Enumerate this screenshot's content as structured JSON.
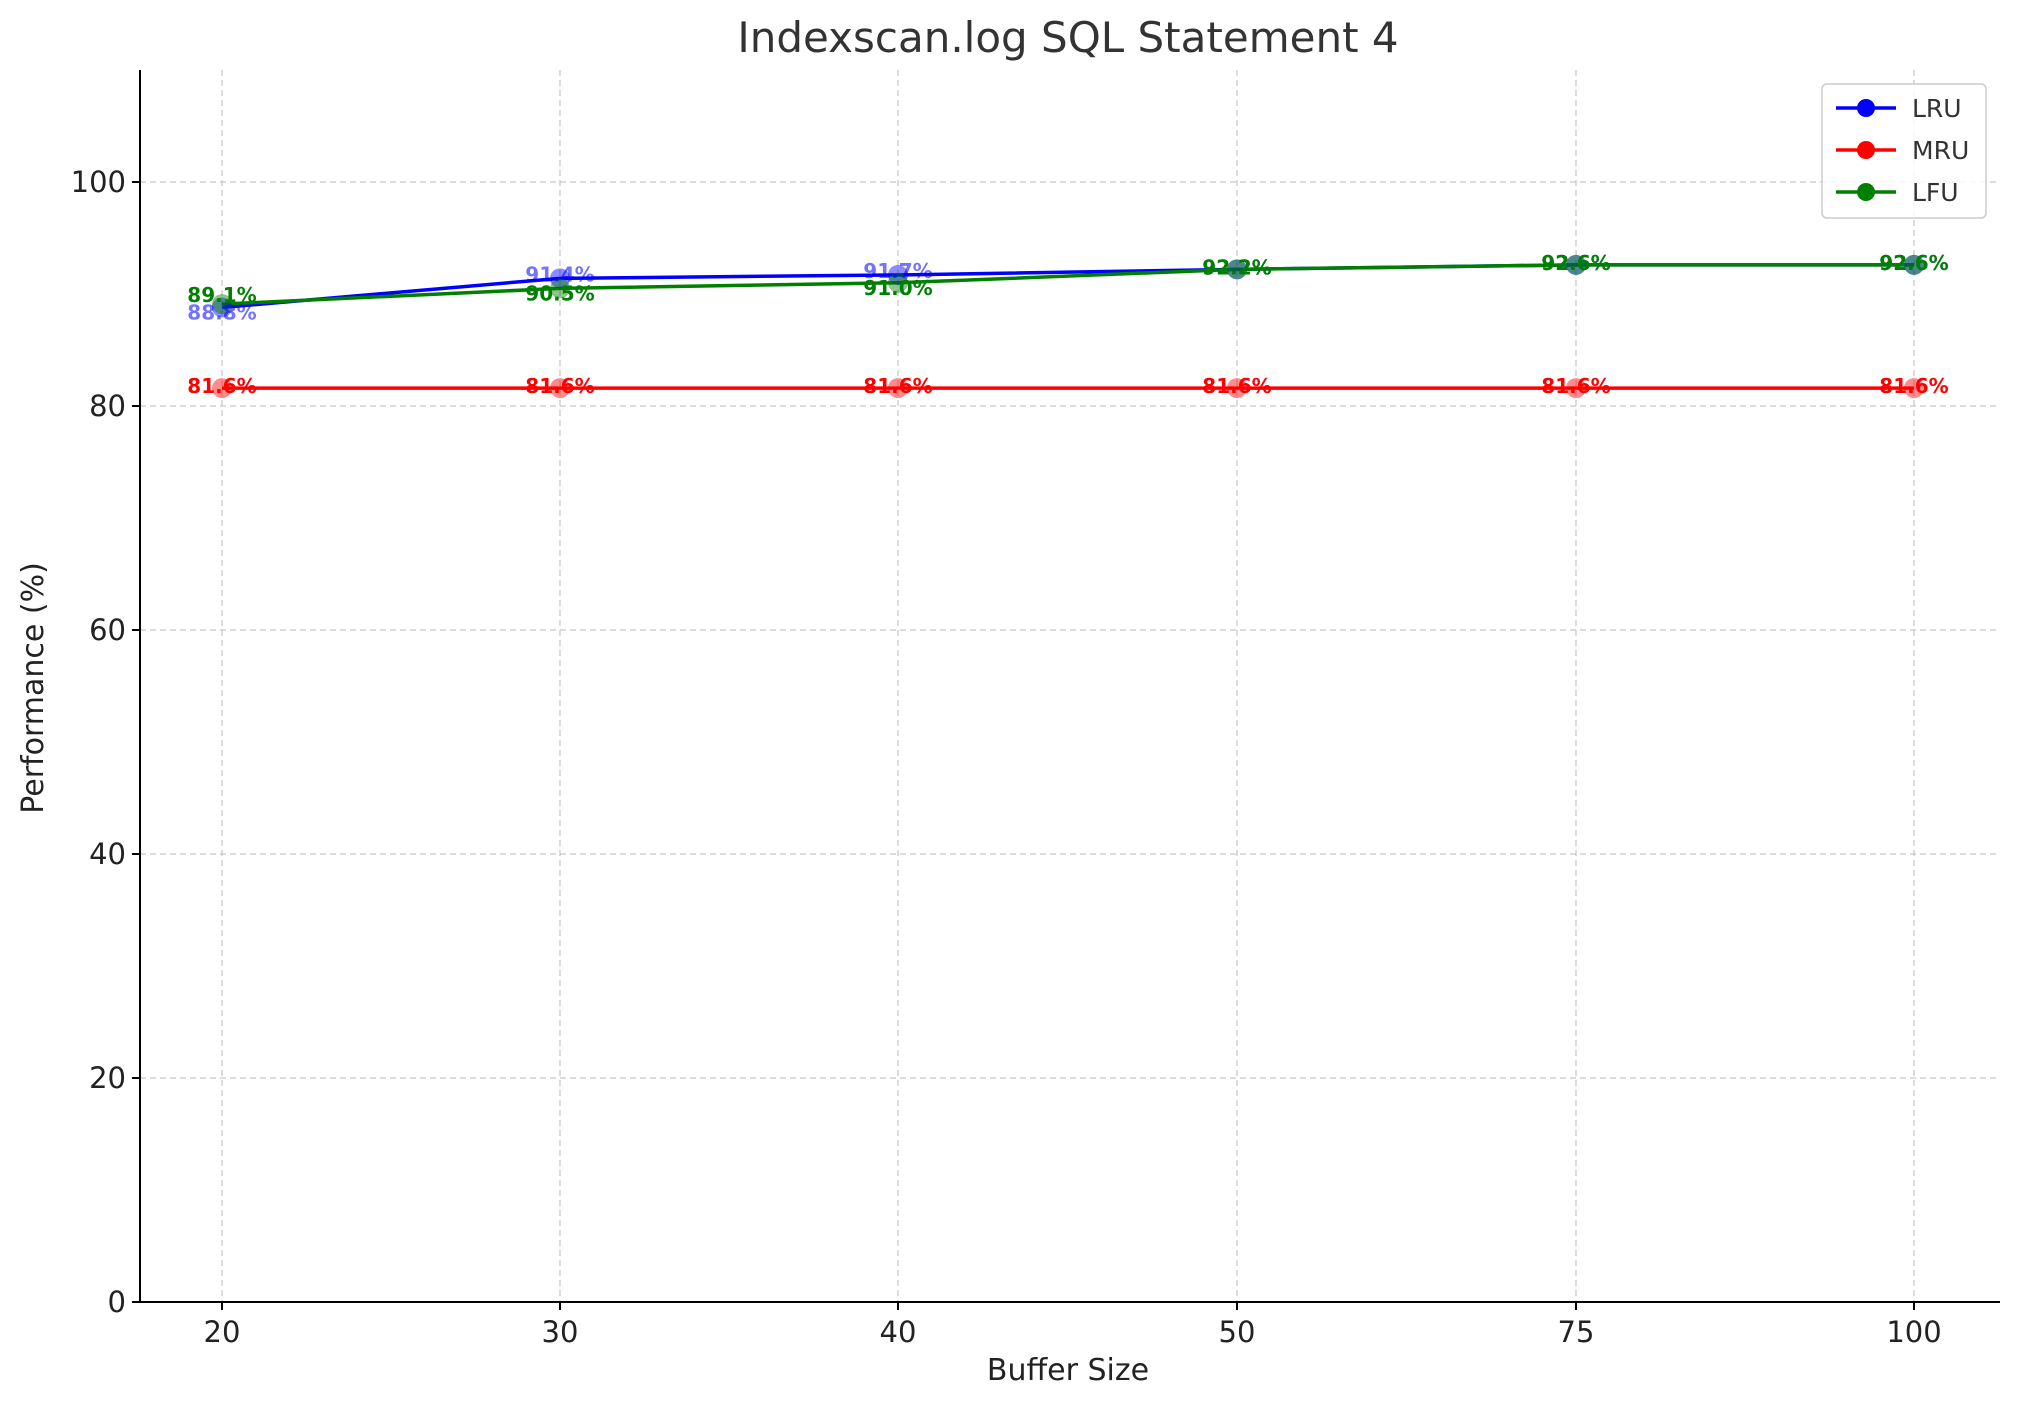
{
  "chart_data": {
    "type": "line",
    "title": "Indexscan.log SQL Statement 4",
    "xlabel": "Buffer Size",
    "ylabel": "Performance (%)",
    "categories": [
      "20",
      "30",
      "40",
      "50",
      "75",
      "100"
    ],
    "ylim": [
      0,
      110
    ],
    "yticks": [
      0,
      20,
      40,
      60,
      80,
      100
    ],
    "grid": true,
    "legend_position": "top-right",
    "series": [
      {
        "name": "LRU",
        "color": "#0000ff",
        "values": [
          88.8,
          91.4,
          91.7,
          92.2,
          92.6,
          92.6
        ],
        "labels": [
          "88.8%",
          "91.4%",
          "91.7%",
          "92.2%",
          "92.6%",
          "92.6%"
        ]
      },
      {
        "name": "MRU",
        "color": "#ff0000",
        "values": [
          81.6,
          81.6,
          81.6,
          81.6,
          81.6,
          81.6
        ],
        "labels": [
          "81.6%",
          "81.6%",
          "81.6%",
          "81.6%",
          "81.6%",
          "81.6%"
        ]
      },
      {
        "name": "LFU",
        "color": "#008000",
        "values": [
          89.1,
          90.5,
          91.0,
          92.2,
          92.6,
          92.6
        ],
        "labels": [
          "89.1%",
          "90.5%",
          "91.0%",
          "92.2%",
          "92.6%",
          "92.6%"
        ]
      }
    ]
  }
}
